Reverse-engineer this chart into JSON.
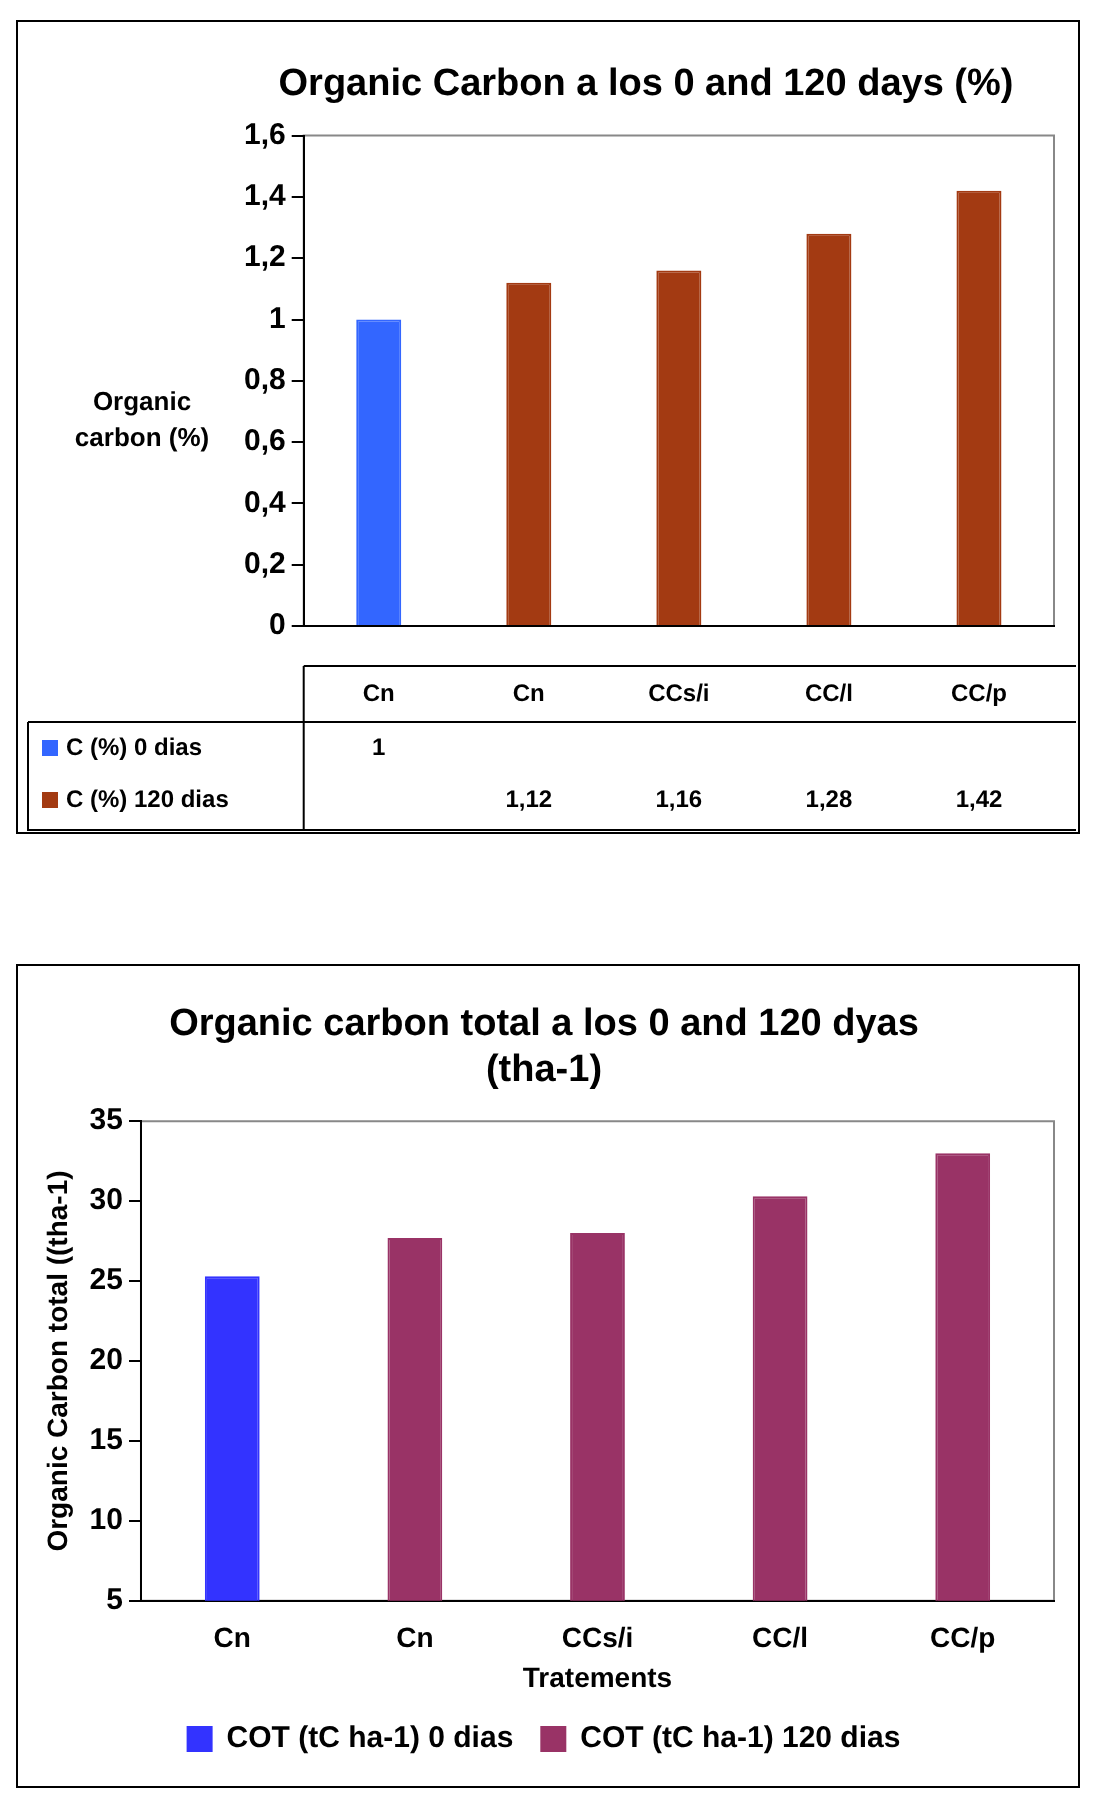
{
  "chart_data": [
    {
      "type": "bar",
      "title": "Organic Carbon a los 0 and 120 days (%)",
      "ylabel": "Organic carbon (%)",
      "categories": [
        "Cn",
        "Cn",
        "CCs/i",
        "CC/l",
        "CC/p"
      ],
      "series": [
        {
          "name": "C (%) 0 dias",
          "color": "#3366ff",
          "values": [
            1,
            null,
            null,
            null,
            null
          ]
        },
        {
          "name": "C (%) 120 dias",
          "color": "#a33a12",
          "values": [
            null,
            1.12,
            1.16,
            1.28,
            1.42
          ]
        }
      ],
      "ylim": [
        0,
        1.6
      ],
      "yticks": [
        0,
        {
          "value": 0.2,
          "label": "0,2"
        },
        {
          "value": 0.4,
          "label": "0,4"
        },
        {
          "value": 0.6,
          "label": "0,6"
        },
        {
          "value": 0.8,
          "label": "0,8"
        },
        1,
        {
          "value": 1.2,
          "label": "1,2"
        },
        {
          "value": 1.4,
          "label": "1,4"
        },
        {
          "value": 1.6,
          "label": "1,6"
        }
      ],
      "value_labels": [
        [
          "1",
          null,
          null,
          null,
          null
        ],
        [
          null,
          "1,12",
          "1,16",
          "1,28",
          "1,42"
        ]
      ],
      "grid": false,
      "legend": "bottom left"
    },
    {
      "type": "bar",
      "title": "Organic carbon total a los 0 and 120 dyas (tha-1)",
      "xlabel": "Tratements",
      "ylabel": "Organic Carbon total ((tha-1)",
      "categories": [
        "Cn",
        "Cn",
        "CCs/i",
        "CC/l",
        "CC/p"
      ],
      "series": [
        {
          "name": "COT (tC ha-1) 0 dias",
          "color": "#3333ff",
          "values": [
            25.3,
            null,
            null,
            null,
            null
          ]
        },
        {
          "name": "COT (tC ha-1) 120 dias",
          "color": "#993366",
          "values": [
            null,
            27.7,
            28,
            30.3,
            33
          ]
        }
      ],
      "ylim": [
        5,
        35
      ],
      "yticks": [
        5,
        10,
        15,
        20,
        25,
        30,
        35
      ],
      "grid": false,
      "legend": "bottom"
    }
  ]
}
